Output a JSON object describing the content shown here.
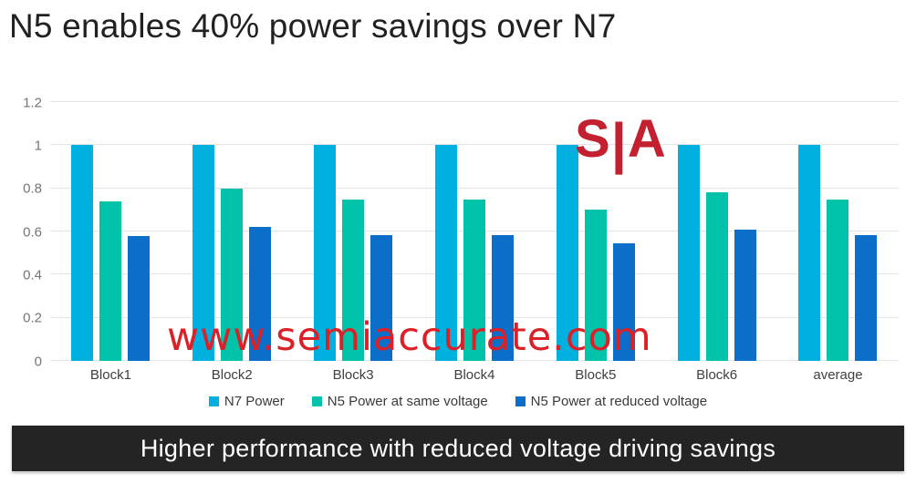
{
  "title": "N5 enables 40% power savings over N7",
  "banner": {
    "text": "Higher performance with reduced voltage driving savings",
    "background": "#242424",
    "text_color": "#ffffff"
  },
  "watermark": {
    "logo_left": "S",
    "logo_pipe": "|",
    "logo_right": "A",
    "url": "www.semiaccurate.com",
    "color": "#cc2029"
  },
  "chart_data": {
    "type": "bar",
    "title": "N5 enables 40% power savings over N7",
    "categories": [
      "Block1",
      "Block2",
      "Block3",
      "Block4",
      "Block5",
      "Block6",
      "average"
    ],
    "series": [
      {
        "name": "N7 Power",
        "color": "#00b1e0",
        "values": [
          1,
          1,
          1,
          1,
          1,
          1,
          1
        ]
      },
      {
        "name": "N5 Power at same voltage",
        "color": "#00c3aa",
        "values": [
          0.74,
          0.8,
          0.75,
          0.75,
          0.7,
          0.78,
          0.75
        ]
      },
      {
        "name": "N5 Power at reduced voltage",
        "color": "#0b6ec8",
        "values": [
          0.58,
          0.62,
          0.585,
          0.585,
          0.545,
          0.61,
          0.585
        ]
      }
    ],
    "xlabel": "",
    "ylabel": "",
    "ylim": [
      0,
      1.2
    ],
    "ytick_labels": [
      "0",
      "0.2",
      "0.4",
      "0.6",
      "0.8",
      "1",
      "1.2"
    ],
    "ytick_values": [
      0,
      0.2,
      0.4,
      0.6,
      0.8,
      1,
      1.2
    ],
    "grid": "horizontal",
    "gridline_color": "#e4e4e4",
    "legend_position": "bottom"
  }
}
